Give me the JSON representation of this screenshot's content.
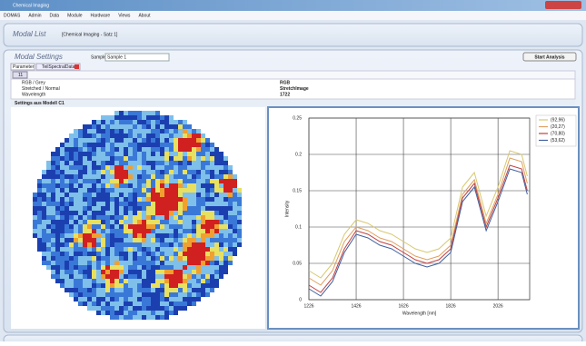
{
  "window": {
    "title": "Chemical Imaging"
  },
  "menu": [
    "DOMAS",
    "Admin",
    "Data",
    "Module",
    "Hardware",
    "Views",
    "About"
  ],
  "modal_list": {
    "title": "Modal List",
    "item": "[Chemical Imaging - Satz 1]"
  },
  "modal_settings": {
    "title": "Modal Settings",
    "sample_name_label": "Sample name:",
    "sample_name": "Sample 1",
    "button": "Start Analysis",
    "tabs": [
      "Parameter",
      "TeilSpectralData"
    ],
    "toolbar": "11",
    "properties": [
      [
        "RGB / Grey",
        "RGB"
      ],
      [
        "Stretched / Normal",
        "StretchImage"
      ],
      [
        "Wavelength",
        "1722"
      ]
    ],
    "section": "Settings aus Modell C1"
  },
  "chart_data": {
    "type": "line",
    "x_label": "Wavelength [nm]",
    "y_label": "Intensity",
    "x": [
      1226,
      1276,
      1326,
      1376,
      1426,
      1476,
      1526,
      1576,
      1626,
      1676,
      1726,
      1776,
      1826,
      1876,
      1926,
      1976,
      2026,
      2076,
      2126,
      2150
    ],
    "series": [
      {
        "name": "(92,96)",
        "color": "#d8c870",
        "values": [
          0.04,
          0.03,
          0.05,
          0.09,
          0.11,
          0.105,
          0.095,
          0.09,
          0.08,
          0.07,
          0.065,
          0.07,
          0.085,
          0.155,
          0.175,
          0.115,
          0.155,
          0.205,
          0.2,
          0.17
        ]
      },
      {
        "name": "(20,27)",
        "color": "#e0a060",
        "values": [
          0.03,
          0.02,
          0.04,
          0.08,
          0.1,
          0.095,
          0.085,
          0.08,
          0.07,
          0.06,
          0.055,
          0.06,
          0.075,
          0.145,
          0.165,
          0.105,
          0.145,
          0.195,
          0.19,
          0.16
        ]
      },
      {
        "name": "(70,80)",
        "color": "#c04040",
        "values": [
          0.02,
          0.01,
          0.03,
          0.07,
          0.095,
          0.09,
          0.08,
          0.075,
          0.065,
          0.055,
          0.05,
          0.055,
          0.07,
          0.14,
          0.16,
          0.1,
          0.14,
          0.185,
          0.18,
          0.15
        ]
      },
      {
        "name": "(53,62)",
        "color": "#4060a0",
        "values": [
          0.015,
          0.005,
          0.025,
          0.065,
          0.09,
          0.085,
          0.075,
          0.07,
          0.06,
          0.05,
          0.045,
          0.05,
          0.065,
          0.135,
          0.155,
          0.095,
          0.135,
          0.18,
          0.175,
          0.145
        ]
      }
    ],
    "xlim": [
      1226,
      2160
    ],
    "xticks": [
      1226,
      1426,
      1626,
      1826,
      2026
    ],
    "ylim": [
      0,
      0.25
    ],
    "yticks": [
      0,
      0.05,
      0.1,
      0.15,
      0.2,
      0.25
    ],
    "grid": true
  }
}
